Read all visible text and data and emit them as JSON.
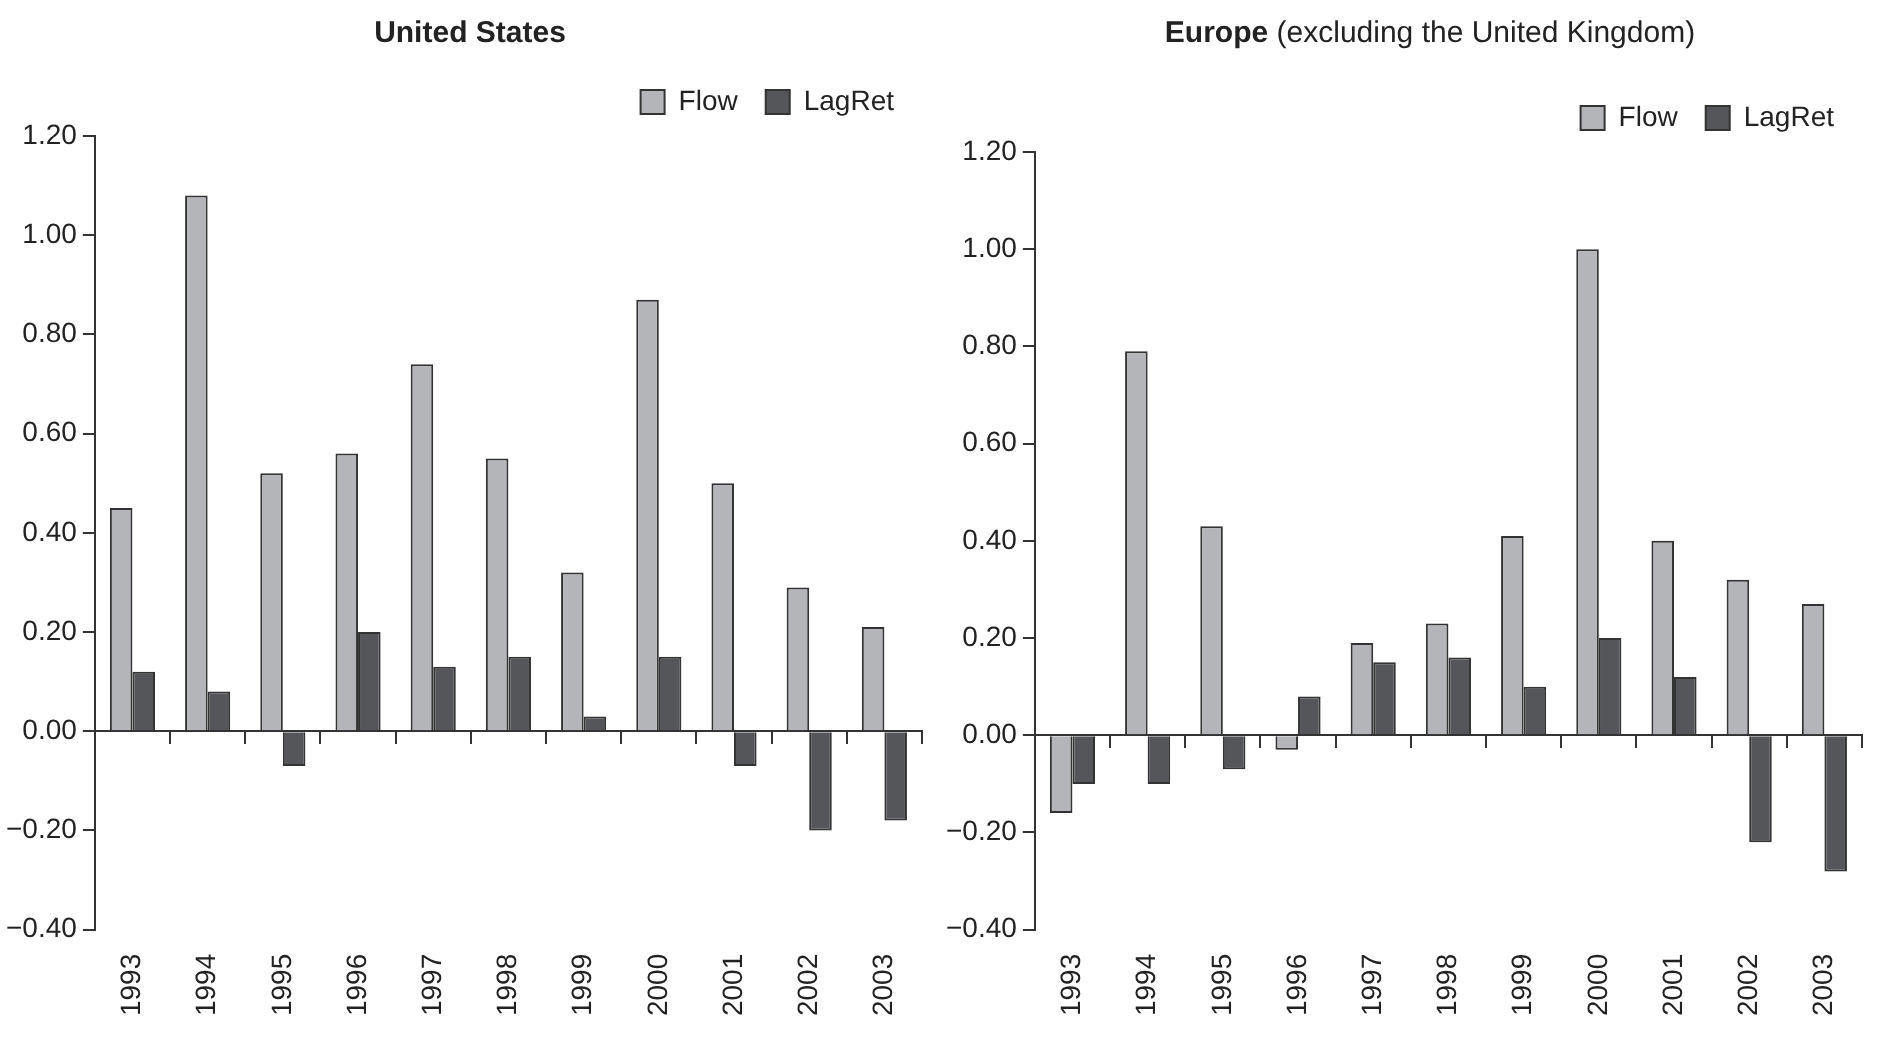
{
  "chart_data": [
    {
      "type": "bar",
      "title": "United States",
      "categories": [
        "1993",
        "1994",
        "1995",
        "1996",
        "1997",
        "1998",
        "1999",
        "2000",
        "2001",
        "2002",
        "2003"
      ],
      "series": [
        {
          "name": "Flow",
          "color": "#b4b5b8",
          "values": [
            0.45,
            1.08,
            0.52,
            0.56,
            0.74,
            0.55,
            0.32,
            0.87,
            0.5,
            0.29,
            0.21
          ]
        },
        {
          "name": "LagRet",
          "color": "#555659",
          "values": [
            0.12,
            0.08,
            -0.07,
            0.2,
            0.13,
            0.15,
            0.03,
            0.15,
            -0.07,
            -0.2,
            -0.18
          ]
        }
      ],
      "ylim": [
        -0.4,
        1.2
      ],
      "yticks": [
        {
          "value": -0.4,
          "label": "−0.40"
        },
        {
          "value": -0.2,
          "label": "−0.20"
        },
        {
          "value": 0,
          "label": "0.00"
        },
        {
          "value": 0.2,
          "label": "0.20"
        },
        {
          "value": 0.4,
          "label": "0.40"
        },
        {
          "value": 0.6,
          "label": "0.60"
        },
        {
          "value": 0.8,
          "label": "0.80"
        },
        {
          "value": 1,
          "label": "1.00"
        },
        {
          "value": 1.2,
          "label": "1.20"
        }
      ],
      "legend": "top right"
    },
    {
      "type": "bar",
      "title": "Europe",
      "subtitle": "(excluding the United Kingdom)",
      "categories": [
        "1993",
        "1994",
        "1995",
        "1996",
        "1997",
        "1998",
        "1999",
        "2000",
        "2001",
        "2002",
        "2003"
      ],
      "series": [
        {
          "name": "Flow",
          "color": "#b4b5b8",
          "values": [
            -0.16,
            0.79,
            0.43,
            -0.03,
            0.19,
            0.23,
            0.41,
            1.0,
            0.4,
            0.32,
            0.27
          ]
        },
        {
          "name": "LagRet",
          "color": "#555659",
          "values": [
            -0.1,
            -0.1,
            -0.07,
            0.08,
            0.15,
            0.16,
            0.1,
            0.2,
            0.12,
            -0.22,
            -0.28
          ]
        }
      ],
      "ylim": [
        -0.4,
        1.2
      ],
      "yticks": [
        {
          "value": -0.4,
          "label": "−0.40"
        },
        {
          "value": -0.2,
          "label": "−0.20"
        },
        {
          "value": 0,
          "label": "0.00"
        },
        {
          "value": 0.2,
          "label": "0.20"
        },
        {
          "value": 0.4,
          "label": "0.40"
        },
        {
          "value": 0.6,
          "label": "0.60"
        },
        {
          "value": 0.8,
          "label": "0.80"
        },
        {
          "value": 1,
          "label": "1.00"
        },
        {
          "value": 1.2,
          "label": "1.20"
        }
      ],
      "legend": "top right"
    }
  ]
}
